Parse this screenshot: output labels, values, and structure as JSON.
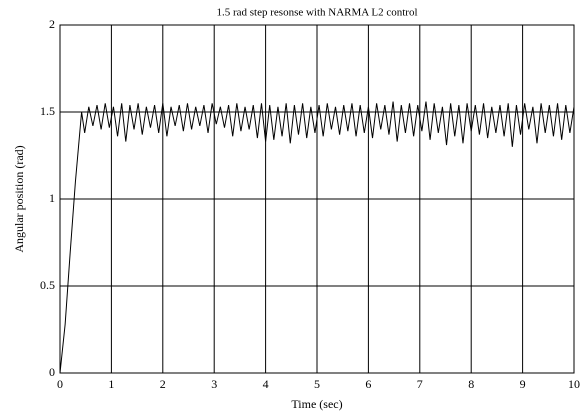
{
  "chart_data": {
    "type": "line",
    "title": "1.5 rad step resonse with NARMA L2 control",
    "x_label": "Time (sec)",
    "y_label": "Angular position (rad)",
    "color": "#000000",
    "grid": true,
    "xlim": [
      0,
      10
    ],
    "xticks": [
      0,
      1,
      2,
      3,
      4,
      5,
      6,
      7,
      8,
      9,
      10
    ],
    "ylim": [
      0,
      2
    ],
    "yticks": [
      0,
      0.5,
      1,
      1.5,
      2
    ],
    "x": [
      0,
      0.1,
      0.2,
      0.3,
      0.42,
      0.48,
      0.56,
      0.64,
      0.72,
      0.8,
      0.88,
      0.96,
      1.04,
      1.12,
      1.2,
      1.28,
      1.36,
      1.44,
      1.52,
      1.6,
      1.68,
      1.76,
      1.84,
      1.92,
      2,
      2.08,
      2.16,
      2.24,
      2.32,
      2.4,
      2.48,
      2.56,
      2.64,
      2.72,
      2.8,
      2.88,
      2.96,
      3.04,
      3.12,
      3.2,
      3.28,
      3.36,
      3.44,
      3.52,
      3.6,
      3.68,
      3.76,
      3.84,
      3.92,
      4,
      4.08,
      4.16,
      4.24,
      4.32,
      4.4,
      4.48,
      4.56,
      4.64,
      4.72,
      4.8,
      4.88,
      4.96,
      5.04,
      5.12,
      5.2,
      5.28,
      5.36,
      5.44,
      5.52,
      5.6,
      5.68,
      5.76,
      5.84,
      5.92,
      6,
      6.08,
      6.16,
      6.24,
      6.32,
      6.4,
      6.48,
      6.56,
      6.64,
      6.72,
      6.8,
      6.88,
      6.96,
      7.04,
      7.12,
      7.2,
      7.28,
      7.36,
      7.44,
      7.52,
      7.6,
      7.68,
      7.76,
      7.84,
      7.92,
      8,
      8.08,
      8.16,
      8.24,
      8.32,
      8.4,
      8.48,
      8.56,
      8.64,
      8.72,
      8.8,
      8.88,
      8.96,
      9.04,
      9.12,
      9.2,
      9.28,
      9.36,
      9.44,
      9.52,
      9.6,
      9.68,
      9.76,
      9.84,
      9.92,
      10
    ],
    "values": [
      0,
      0.28,
      0.7,
      1.1,
      1.5,
      1.38,
      1.53,
      1.42,
      1.54,
      1.4,
      1.55,
      1.41,
      1.53,
      1.36,
      1.55,
      1.33,
      1.54,
      1.4,
      1.55,
      1.37,
      1.53,
      1.41,
      1.54,
      1.38,
      1.55,
      1.36,
      1.53,
      1.42,
      1.54,
      1.39,
      1.55,
      1.4,
      1.53,
      1.42,
      1.54,
      1.38,
      1.55,
      1.43,
      1.53,
      1.41,
      1.54,
      1.36,
      1.55,
      1.39,
      1.53,
      1.4,
      1.54,
      1.35,
      1.55,
      1.33,
      1.54,
      1.34,
      1.53,
      1.36,
      1.55,
      1.32,
      1.54,
      1.37,
      1.55,
      1.35,
      1.53,
      1.38,
      1.54,
      1.36,
      1.55,
      1.4,
      1.53,
      1.37,
      1.54,
      1.39,
      1.55,
      1.36,
      1.54,
      1.38,
      1.53,
      1.35,
      1.55,
      1.4,
      1.54,
      1.37,
      1.56,
      1.33,
      1.54,
      1.38,
      1.55,
      1.36,
      1.54,
      1.39,
      1.56,
      1.34,
      1.55,
      1.38,
      1.53,
      1.31,
      1.55,
      1.36,
      1.54,
      1.32,
      1.55,
      1.39,
      1.54,
      1.37,
      1.55,
      1.35,
      1.53,
      1.38,
      1.54,
      1.36,
      1.55,
      1.3,
      1.54,
      1.37,
      1.55,
      1.4,
      1.53,
      1.32,
      1.55,
      1.38,
      1.54,
      1.36,
      1.55,
      1.34,
      1.54,
      1.38,
      1.53
    ]
  }
}
